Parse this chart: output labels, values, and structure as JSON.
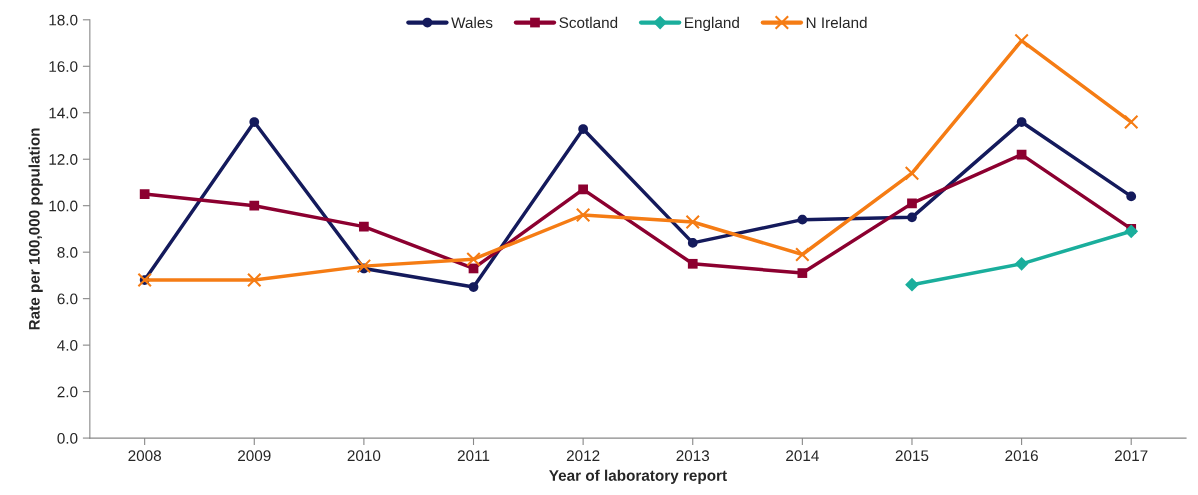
{
  "chart_data": {
    "type": "line",
    "xlabel": "Year of laboratory report",
    "ylabel": "Rate per 100,000 population",
    "categories": [
      "2008",
      "2009",
      "2010",
      "2011",
      "2012",
      "2013",
      "2014",
      "2015",
      "2016",
      "2017"
    ],
    "series": [
      {
        "name": "Wales",
        "color": "#141a5c",
        "marker": "circle",
        "values": [
          6.8,
          13.6,
          7.3,
          6.5,
          13.3,
          8.4,
          9.4,
          9.5,
          13.6,
          10.4
        ]
      },
      {
        "name": "Scotland",
        "color": "#8c0030",
        "marker": "square",
        "values": [
          10.5,
          10.0,
          9.1,
          7.3,
          10.7,
          7.5,
          7.1,
          10.1,
          12.2,
          9.0
        ]
      },
      {
        "name": "England",
        "color": "#1aae9c",
        "marker": "diamond",
        "values": [
          null,
          null,
          null,
          null,
          null,
          null,
          null,
          6.6,
          7.5,
          8.9
        ]
      },
      {
        "name": "N Ireland",
        "color": "#f57c14",
        "marker": "cross",
        "values": [
          6.8,
          6.8,
          7.4,
          7.7,
          9.6,
          9.3,
          7.9,
          11.4,
          17.1,
          13.6
        ]
      }
    ],
    "ylim": [
      0,
      18
    ],
    "yticks": [
      {
        "value": 0,
        "label": "0.0"
      },
      {
        "value": 2,
        "label": "2.0"
      },
      {
        "value": 4,
        "label": "4.0"
      },
      {
        "value": 6,
        "label": "6.0"
      },
      {
        "value": 8,
        "label": "8.0"
      },
      {
        "value": 10,
        "label": "10.0"
      },
      {
        "value": 12,
        "label": "12.0"
      },
      {
        "value": 14,
        "label": "14.0"
      },
      {
        "value": 16,
        "label": "16.0"
      },
      {
        "value": 18,
        "label": "18.0"
      }
    ],
    "grid": false,
    "legend": "top",
    "line_style": "solid"
  }
}
